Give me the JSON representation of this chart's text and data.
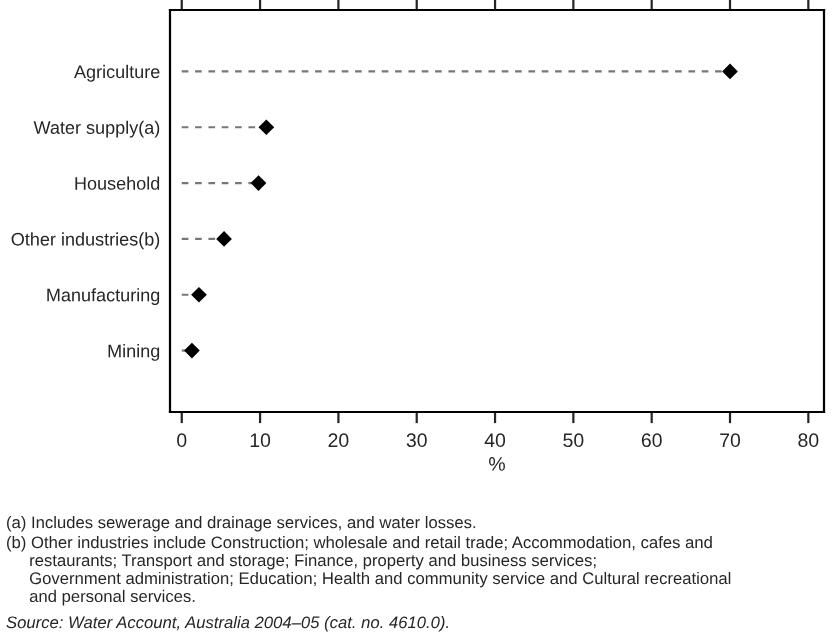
{
  "chart_data": {
    "type": "lollipop",
    "orientation": "horizontal",
    "xlabel": "%",
    "categories": [
      "Agriculture",
      "Water supply(a)",
      "Household",
      "Other industries(b)",
      "Manufacturing",
      "Mining"
    ],
    "values": [
      70,
      10.8,
      9.8,
      5.4,
      2.2,
      1.3
    ],
    "color": "#000000",
    "marker": "diamond",
    "line_style": "dashed",
    "xlim": [
      -1.5,
      82
    ],
    "xticks": [
      0,
      10,
      20,
      30,
      40,
      50,
      60,
      70,
      80
    ],
    "annotations": [
      "(a) Includes sewerage and drainage services, and water losses.",
      "(b) Other industries include Construction; wholesale and retail trade; Accommodation, cafes and\n     restaurants; Transport and storage; Finance, property and business services;\n     Government administration; Education; Health and community service and Cultural recreational\n     and personal services.",
      "Source: Water Account, Australia 2004–05 (cat. no. 4610.0)."
    ]
  }
}
